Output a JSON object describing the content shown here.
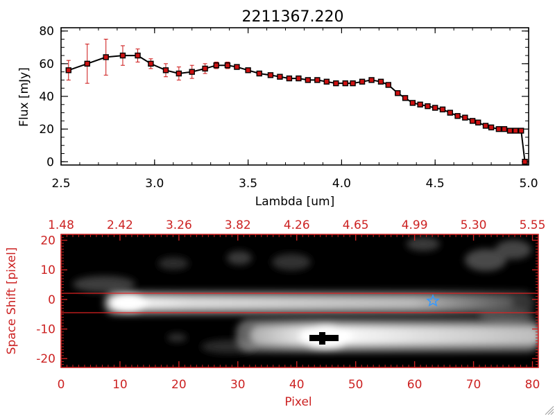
{
  "title": "2211367.220",
  "chart_data": [
    {
      "type": "line",
      "name": "spectrum",
      "xlabel": "Lambda [um]",
      "ylabel": "Flux [mJy]",
      "xlim": [
        2.5,
        5.0
      ],
      "ylim": [
        -2,
        82
      ],
      "x_ticks": [
        "2.5",
        "3.0",
        "3.5",
        "4.0",
        "4.5",
        "5.0"
      ],
      "y_ticks": [
        "0",
        "20",
        "40",
        "60",
        "80"
      ],
      "x_tick_values": [
        2.5,
        3.0,
        3.5,
        4.0,
        4.5,
        5.0
      ],
      "y_tick_values": [
        0,
        20,
        40,
        60,
        80
      ],
      "series": [
        {
          "name": "flux",
          "x": [
            2.54,
            2.64,
            2.74,
            2.83,
            2.91,
            2.98,
            3.06,
            3.13,
            3.2,
            3.27,
            3.33,
            3.39,
            3.44,
            3.5,
            3.56,
            3.62,
            3.67,
            3.72,
            3.77,
            3.82,
            3.87,
            3.92,
            3.97,
            4.02,
            4.06,
            4.11,
            4.16,
            4.21,
            4.25,
            4.3,
            4.34,
            4.38,
            4.42,
            4.46,
            4.5,
            4.54,
            4.58,
            4.62,
            4.66,
            4.7,
            4.73,
            4.77,
            4.8,
            4.84,
            4.87,
            4.9,
            4.93,
            4.96,
            4.98
          ],
          "y": [
            56,
            60,
            64,
            65,
            65,
            60,
            56,
            54,
            55,
            57,
            59,
            59,
            58,
            56,
            54,
            53,
            52,
            51,
            51,
            50,
            50,
            49,
            48,
            48,
            48,
            49,
            50,
            49,
            47,
            42,
            39,
            36,
            35,
            34,
            33,
            32,
            30,
            28,
            27,
            25,
            24,
            22,
            21,
            20,
            20,
            19,
            19,
            19,
            0
          ],
          "err": [
            6,
            12,
            11,
            6,
            4,
            3,
            4,
            4,
            4,
            3,
            2,
            2,
            1,
            1,
            1,
            1,
            1,
            1,
            1,
            1,
            1,
            1,
            1,
            1,
            1,
            1,
            1,
            1,
            1,
            1,
            1,
            1,
            1,
            1,
            1,
            1,
            1,
            1,
            1,
            1,
            1,
            1,
            1,
            1,
            1,
            1,
            1,
            1,
            1
          ]
        }
      ]
    },
    {
      "type": "heatmap",
      "name": "2D spectrum image",
      "xlabel": "Pixel",
      "ylabel": "Space Shift [pixel]",
      "xlim": [
        0,
        81
      ],
      "ylim": [
        -23,
        22
      ],
      "x_ticks": [
        "0",
        "10",
        "20",
        "30",
        "40",
        "50",
        "60",
        "70",
        "80"
      ],
      "y_ticks": [
        "-20",
        "-10",
        "0",
        "10",
        "20"
      ],
      "x_tick_values": [
        0,
        10,
        20,
        30,
        40,
        50,
        60,
        70,
        80
      ],
      "y_tick_values": [
        -20,
        -10,
        0,
        10,
        20
      ],
      "top_ticks": [
        "1.48",
        "2.42",
        "3.26",
        "3.82",
        "4.26",
        "4.65",
        "4.99",
        "5.30",
        "5.55"
      ],
      "extraction_window": [
        -3,
        3
      ],
      "features": [
        {
          "name": "upper trace",
          "x": [
            7,
            81
          ],
          "y": 0,
          "peak_x": 11
        },
        {
          "name": "lower trace",
          "x": [
            30,
            81
          ],
          "y": -11,
          "peak_x": 44
        },
        {
          "name": "marker star",
          "x": 63.5,
          "y": 0.5
        },
        {
          "name": "black cross",
          "x": 44.5,
          "y": -10.5
        }
      ]
    }
  ],
  "colors": {
    "axis_red": "#cc2222",
    "marker_red": "#cc1111",
    "star_blue": "#3399ff",
    "line": "#000000"
  }
}
